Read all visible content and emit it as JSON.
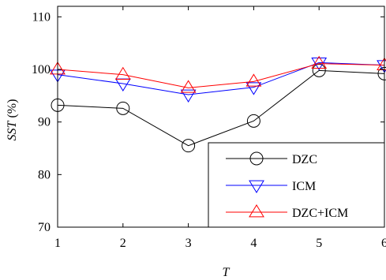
{
  "chart_data": {
    "type": "line",
    "title": "",
    "xlabel": "T",
    "ylabel_main": "SST",
    "ylabel_unit": " (%)",
    "x": [
      1,
      2,
      3,
      4,
      5,
      6
    ],
    "x_ticks": [
      "1",
      "2",
      "3",
      "4",
      "5",
      "6"
    ],
    "y_ticks": [
      "70",
      "80",
      "90",
      "100",
      "110"
    ],
    "xlim": [
      1,
      6
    ],
    "ylim": [
      70,
      112
    ],
    "grid": false,
    "legend_position": "bottom-right",
    "series": [
      {
        "name": "DZC",
        "marker": "circle",
        "color": "#000000",
        "values": [
          93.2,
          92.6,
          85.5,
          90.2,
          99.8,
          99.2
        ]
      },
      {
        "name": "ICM",
        "marker": "triangle-down",
        "color": "#0000ff",
        "values": [
          99.0,
          97.3,
          95.2,
          96.6,
          101.3,
          100.8
        ]
      },
      {
        "name": "DZC+ICM",
        "marker": "triangle-up",
        "color": "#ff0000",
        "values": [
          100.0,
          99.0,
          96.5,
          97.7,
          101.1,
          100.8
        ]
      }
    ]
  }
}
